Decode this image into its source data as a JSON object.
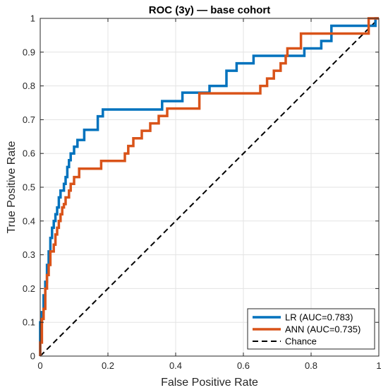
{
  "chart_data": {
    "type": "line",
    "title": "ROC (3y) — base cohort",
    "xlabel": "False Positive Rate",
    "ylabel": "True Positive Rate",
    "xlim": [
      0,
      1
    ],
    "ylim": [
      0,
      1
    ],
    "xticks": [
      0,
      0.2,
      0.4,
      0.6,
      0.8,
      1
    ],
    "yticks": [
      0,
      0.1,
      0.2,
      0.3,
      0.4,
      0.5,
      0.6,
      0.7,
      0.8,
      0.9,
      1
    ],
    "xtick_labels": [
      "0",
      "0.2",
      "0.4",
      "0.6",
      "0.8",
      "1"
    ],
    "ytick_labels": [
      "0",
      "0.1",
      "0.2",
      "0.3",
      "0.4",
      "0.5",
      "0.6",
      "0.7",
      "0.8",
      "0.9",
      "1"
    ],
    "grid": true,
    "legend_position": "bottom-right",
    "series": [
      {
        "name": "LR (AUC=0.783)",
        "color": "#0072BD",
        "style": "solid",
        "x": [
          0,
          0,
          0.005,
          0.005,
          0.01,
          0.01,
          0.015,
          0.015,
          0.02,
          0.02,
          0.025,
          0.025,
          0.03,
          0.03,
          0.035,
          0.035,
          0.04,
          0.04,
          0.045,
          0.045,
          0.05,
          0.05,
          0.055,
          0.055,
          0.06,
          0.06,
          0.07,
          0.07,
          0.075,
          0.075,
          0.08,
          0.08,
          0.085,
          0.085,
          0.09,
          0.09,
          0.1,
          0.1,
          0.11,
          0.11,
          0.13,
          0.13,
          0.17,
          0.17,
          0.185,
          0.185,
          0.36,
          0.36,
          0.42,
          0.42,
          0.5,
          0.5,
          0.55,
          0.55,
          0.58,
          0.58,
          0.63,
          0.63,
          0.72,
          0.72,
          0.78,
          0.78,
          0.83,
          0.83,
          0.86,
          0.86,
          0.99,
          0.99,
          1
        ],
        "y": [
          0,
          0.1,
          0.1,
          0.13,
          0.13,
          0.18,
          0.18,
          0.22,
          0.22,
          0.27,
          0.27,
          0.31,
          0.31,
          0.35,
          0.35,
          0.38,
          0.38,
          0.4,
          0.4,
          0.42,
          0.42,
          0.44,
          0.44,
          0.47,
          0.47,
          0.49,
          0.49,
          0.51,
          0.51,
          0.53,
          0.53,
          0.56,
          0.56,
          0.58,
          0.58,
          0.6,
          0.6,
          0.62,
          0.62,
          0.64,
          0.64,
          0.67,
          0.67,
          0.71,
          0.71,
          0.73,
          0.73,
          0.755,
          0.755,
          0.78,
          0.78,
          0.8,
          0.8,
          0.845,
          0.845,
          0.867,
          0.867,
          0.889,
          0.889,
          0.889,
          0.889,
          0.911,
          0.911,
          0.933,
          0.933,
          0.978,
          0.978,
          1,
          1
        ]
      },
      {
        "name": "ANN (AUC=0.735)",
        "color": "#D95319",
        "style": "solid",
        "x": [
          0,
          0,
          0.005,
          0.005,
          0.01,
          0.01,
          0.015,
          0.015,
          0.02,
          0.02,
          0.025,
          0.025,
          0.03,
          0.03,
          0.04,
          0.04,
          0.045,
          0.045,
          0.05,
          0.05,
          0.055,
          0.055,
          0.06,
          0.06,
          0.065,
          0.065,
          0.07,
          0.07,
          0.075,
          0.075,
          0.085,
          0.085,
          0.09,
          0.09,
          0.1,
          0.1,
          0.115,
          0.115,
          0.18,
          0.18,
          0.25,
          0.25,
          0.26,
          0.26,
          0.275,
          0.275,
          0.3,
          0.3,
          0.325,
          0.325,
          0.35,
          0.35,
          0.375,
          0.375,
          0.47,
          0.47,
          0.65,
          0.65,
          0.67,
          0.67,
          0.69,
          0.69,
          0.71,
          0.71,
          0.725,
          0.725,
          0.73,
          0.73,
          0.77,
          0.77,
          0.97,
          0.97,
          1
        ],
        "y": [
          0,
          0.04,
          0.04,
          0.11,
          0.11,
          0.14,
          0.14,
          0.2,
          0.2,
          0.24,
          0.24,
          0.27,
          0.27,
          0.31,
          0.31,
          0.33,
          0.33,
          0.36,
          0.36,
          0.38,
          0.38,
          0.4,
          0.4,
          0.42,
          0.42,
          0.44,
          0.44,
          0.45,
          0.45,
          0.47,
          0.47,
          0.49,
          0.49,
          0.51,
          0.51,
          0.53,
          0.53,
          0.555,
          0.555,
          0.578,
          0.578,
          0.6,
          0.6,
          0.622,
          0.622,
          0.645,
          0.645,
          0.667,
          0.667,
          0.689,
          0.689,
          0.711,
          0.711,
          0.733,
          0.733,
          0.778,
          0.778,
          0.8,
          0.8,
          0.822,
          0.822,
          0.845,
          0.845,
          0.867,
          0.867,
          0.889,
          0.889,
          0.911,
          0.911,
          0.955,
          0.955,
          1,
          1
        ]
      },
      {
        "name": "Chance",
        "color": "#000000",
        "style": "dashed",
        "x": [
          0,
          1
        ],
        "y": [
          0,
          1
        ]
      }
    ]
  }
}
